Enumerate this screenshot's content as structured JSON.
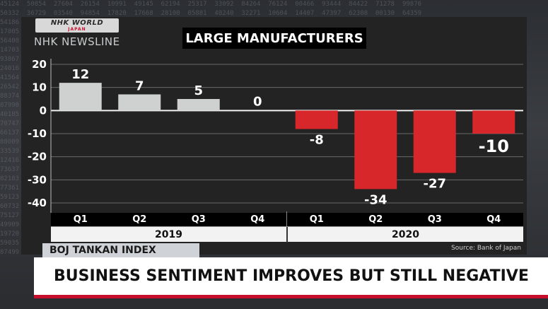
{
  "broadcast": {
    "logo_line1": "NHK WORLD",
    "logo_line2": "JAPAN",
    "program": "NHK NEWSLINE",
    "chart_title": "LARGE MANUFACTURERS",
    "index_label": "BOJ TANKAN INDEX",
    "headline": "BUSINESS SENTIMENT IMPROVES BUT STILL NEGATIVE",
    "source": "Source: Bank of Japan"
  },
  "colors": {
    "positive_bar": "#cfd0d0",
    "negative_bar": "#d8272a",
    "accent_red": "#c8102e"
  },
  "chart_data": {
    "type": "bar",
    "title": "LARGE MANUFACTURERS",
    "categories": [
      "Q1",
      "Q2",
      "Q3",
      "Q4",
      "Q1",
      "Q2",
      "Q3",
      "Q4"
    ],
    "groups": [
      {
        "label": "2019",
        "categories": [
          "Q1",
          "Q2",
          "Q3",
          "Q4"
        ]
      },
      {
        "label": "2020",
        "categories": [
          "Q1",
          "Q2",
          "Q3",
          "Q4"
        ]
      }
    ],
    "values": [
      12,
      7,
      5,
      0,
      -8,
      -34,
      -27,
      -10
    ],
    "data_labels": [
      "12",
      "7",
      "5",
      "0",
      "-8",
      "-34",
      "-27",
      "-10"
    ],
    "yticks": [
      "20",
      "10",
      "0",
      "-10",
      "-20",
      "-30",
      "-40"
    ],
    "ylim": [
      -40,
      20
    ],
    "grid": true
  }
}
